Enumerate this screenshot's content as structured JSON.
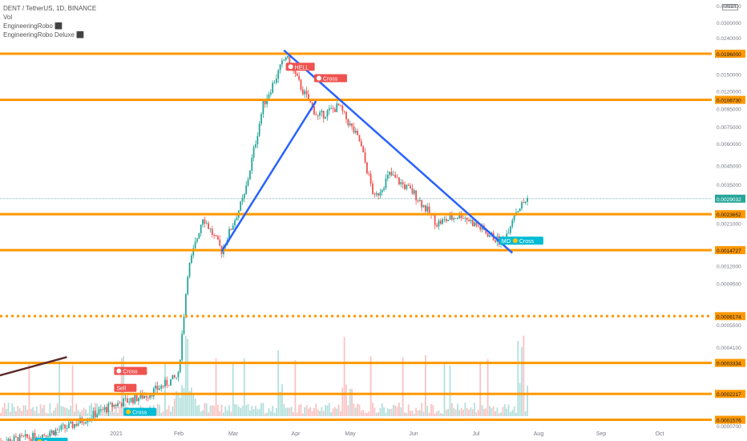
{
  "header": {
    "symbol_line": "DENT / TetherUS, 1D, BINANCE",
    "indicators": [
      "Vol",
      "EngineeringRobo ⬛",
      "EngineeringRobo Deluxe ⬛"
    ],
    "currency_badge": "USDT"
  },
  "chart_data": {
    "type": "candlestick",
    "y_scale": "log",
    "x_labels": [
      "Dec",
      "2021",
      "Feb",
      "Mar",
      "Apr",
      "May",
      "Jun",
      "Jul",
      "Aug",
      "Sep",
      "Oct"
    ],
    "y_ticks": [
      "0.0360000",
      "0.0300000",
      "0.0240000",
      "0.0150000",
      "0.0120000",
      "0.0095000",
      "0.0075000",
      "0.0060000",
      "0.0045000",
      "0.0035000",
      "0.0021000",
      "0.0015000",
      "0.0012000",
      "0.0009500",
      "0.0005500",
      "0.0004100",
      "0.0000700"
    ],
    "levels": [
      {
        "value": 0.0196,
        "label": "0.0196000",
        "style": "solid"
      },
      {
        "value": 0.010673,
        "label": "0.0106730",
        "style": "solid"
      },
      {
        "value": 0.0023652,
        "label": "0.0023652",
        "style": "solid"
      },
      {
        "value": 0.0014727,
        "label": "0.0014727",
        "style": "solid"
      },
      {
        "value": 0.0006174,
        "label": "0.0006174",
        "style": "dotted"
      },
      {
        "value": 0.0003334,
        "label": "0.0003334",
        "style": "solid"
      },
      {
        "value": 0.0002217,
        "label": "0.0002217",
        "style": "solid"
      },
      {
        "value": 0.0001576,
        "label": "0.0001576",
        "style": "solid"
      },
      {
        "value": 0.0001017,
        "label": "0.0001017",
        "style": "solid"
      }
    ],
    "last_price": {
      "value": 0.0029032,
      "label": "0.0029032"
    },
    "signals": [
      {
        "text": "Cross",
        "kind": "sell",
        "icon": "skull",
        "date": "2021-01-02",
        "price": 0.0003
      },
      {
        "text": "Sell",
        "kind": "sell",
        "icon": "none",
        "date": "2021-01-02",
        "price": 0.00024
      },
      {
        "text": "Cross",
        "kind": "buy",
        "icon": "coin",
        "date": "2021-01-07",
        "price": 0.000175
      },
      {
        "text": "Cross",
        "kind": "buy",
        "icon": "coin",
        "date": "2020-11-21",
        "price": 0.000118
      },
      {
        "text": "HELL",
        "kind": "sell",
        "icon": "skull",
        "date": "2021-04-03",
        "price": 0.0165
      },
      {
        "text": "Cross",
        "kind": "sell",
        "icon": "skull",
        "date": "2021-04-18",
        "price": 0.0142
      },
      {
        "text": "MOO",
        "kind": "buy",
        "icon": "none",
        "date": "2021-07-25",
        "price": 0.00167
      },
      {
        "text": "Cross",
        "kind": "buy",
        "icon": "coin",
        "date": "2021-07-31",
        "price": 0.00167
      }
    ],
    "trendlines": [
      {
        "from": {
          "date": "2021-02-28",
          "price": 0.00145
        },
        "to": {
          "date": "2021-04-19",
          "price": 0.0105
        }
      },
      {
        "from": {
          "date": "2021-04-02",
          "price": 0.0205
        },
        "to": {
          "date": "2021-08-01",
          "price": 0.00142
        }
      },
      {
        "from": {
          "date": "2020-11-01",
          "price": 0.00028
        },
        "to": {
          "date": "2020-12-08",
          "price": 0.00036
        }
      }
    ]
  },
  "colors": {
    "up": "#26a69a",
    "down": "#ef5350",
    "level": "#ff9800",
    "trend": "#2962ff",
    "last": "#26a69a",
    "sell_badge": "#ef5350",
    "buy_badge": "#00bcd4"
  }
}
